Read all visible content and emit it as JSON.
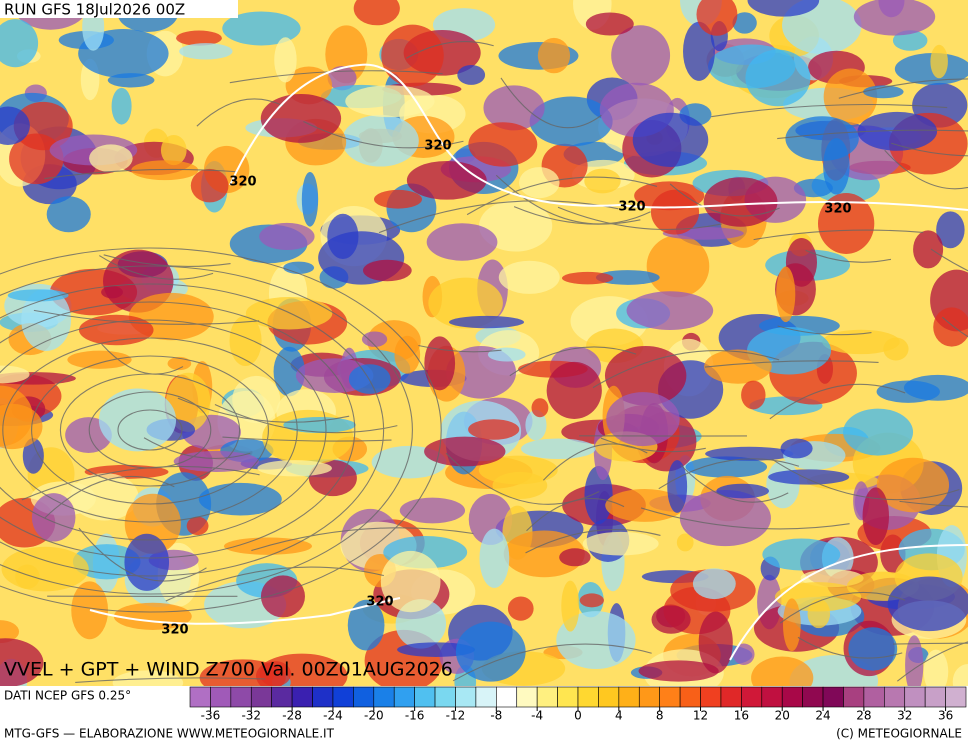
{
  "header": {
    "title": "RUN GFS 18Jul2026 00Z"
  },
  "map": {
    "contour_labels": [
      "320",
      "320",
      "320",
      "320",
      "320",
      "320"
    ],
    "caption": "VVEL + GPT + WIND Z700 Val. 00Z01AUG2026"
  },
  "colorbar": {
    "source": "DATI NCEP GFS 0.25°",
    "range": [
      -38,
      38
    ],
    "colors": [
      "#b06fc4",
      "#a05ab8",
      "#8e4aa8",
      "#7a3898",
      "#5a2aa0",
      "#3a20b0",
      "#1e30c8",
      "#1040d8",
      "#1060e0",
      "#1a80e8",
      "#30a0f0",
      "#50c0f0",
      "#7ad8f0",
      "#a8e8f4",
      "#d8f4f8",
      "#ffffff",
      "#fffac0",
      "#fff080",
      "#ffe650",
      "#ffd830",
      "#ffc820",
      "#ffb018",
      "#ff9818",
      "#ff8018",
      "#f86018",
      "#f04020",
      "#e02828",
      "#d01838",
      "#c01040",
      "#a80848",
      "#900850",
      "#800858",
      "#a84080",
      "#b060a0",
      "#b878b0",
      "#c090c0",
      "#c8a0c8",
      "#d0b0d0"
    ],
    "ticks": [
      -36,
      -32,
      -28,
      -24,
      -20,
      -16,
      -12,
      -8,
      -4,
      0,
      4,
      8,
      12,
      16,
      20,
      24,
      28,
      32,
      36
    ]
  },
  "footer": {
    "left": "MTG-GFS — ELABORAZIONE WWW.METEOGIORNALE.IT",
    "right": "(C) METEOGIORNALE"
  }
}
